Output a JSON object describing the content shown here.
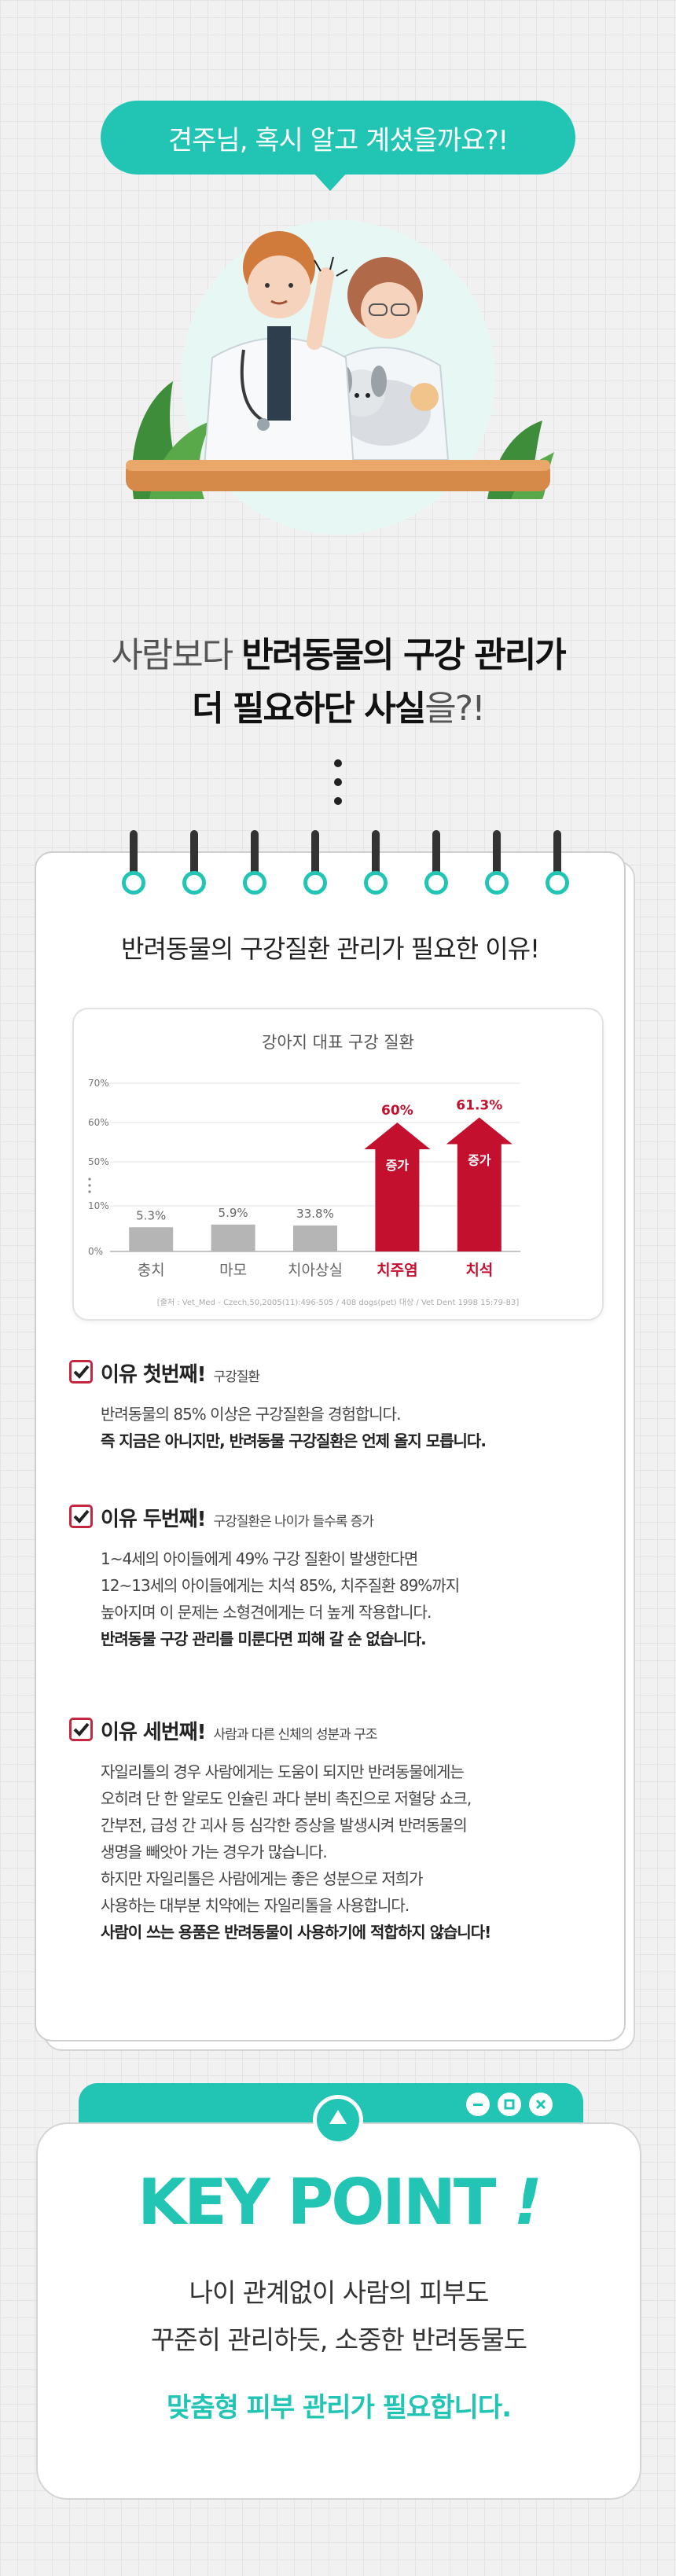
{
  "bubble": {
    "text": "견주님, 혹시 알고 계셨을까요?!"
  },
  "headline": {
    "line1_prefix": "사람보다 ",
    "line1_bold": "반려동물의 구강 관리가",
    "line2_bold": "더 필요하단 사실",
    "line2_suffix": "을?!"
  },
  "card": {
    "title": "반려동물의 구강질환 관리가 필요한 이유!"
  },
  "chart_data": {
    "type": "bar",
    "title": "강아지 대표 구강 질환",
    "categories": [
      "충치",
      "마모",
      "치아상실",
      "치주염",
      "치석"
    ],
    "values": [
      5.3,
      5.9,
      33.8,
      60,
      61.3
    ],
    "value_labels": [
      "5.3%",
      "5.9%",
      "33.8%",
      "60%",
      "61.3%"
    ],
    "highlight_label": "증가",
    "yticks": [
      "0%",
      "10%",
      "50%",
      "60%",
      "70%"
    ],
    "ylim": [
      0,
      70
    ],
    "axis_break": true,
    "colors": {
      "normal": "#b5b5b5",
      "highlight": "#c2102e",
      "label_highlight": "#c2102e"
    },
    "source": "[출처 : Vet_Med - Czech,50,2005(11):496-505 / 408 dogs(pet) 대상 / Vet Dent 1998 15:79-83]"
  },
  "reasons": [
    {
      "head": "이유 첫번째!",
      "sub": "구강질환",
      "lines": [
        "반려동물의 85% 이상은 구강질환을 경험합니다."
      ],
      "bold": "즉 지금은 아니지만, 반려동물 구강질환은 언제 올지 모릅니다."
    },
    {
      "head": "이유 두번째!",
      "sub": "구강질환은 나이가 들수록 증가",
      "lines": [
        "1~4세의 아이들에게 49% 구강 질환이 발생한다면",
        "12~13세의 아이들에게는 치석 85%, 치주질환 89%까지",
        "높아지며 이 문제는 소형견에게는 더 높게 작용합니다."
      ],
      "bold": "반려동물 구강 관리를 미룬다면 피해 갈 순 없습니다."
    },
    {
      "head": "이유 세번째!",
      "sub": "사람과 다른 신체의 성분과 구조",
      "lines": [
        "자일리톨의 경우 사람에게는 도움이 되지만 반려동물에게는",
        "오히려 단 한 알로도 인슐린 과다 분비 촉진으로 저혈당 쇼크,",
        "간부전, 급성 간 괴사 등 심각한 증상을 발생시켜 반려동물의",
        "생명을 빼앗아 가는 경우가 많습니다.",
        "하지만 자일리톨은 사람에게는 좋은 성분으로 저희가",
        "사용하는 대부분 치약에는 자일리톨을 사용합니다."
      ],
      "bold": "사람이 쓰는 용품은 반려동물이 사용하기에 적합하지 않습니다!"
    }
  ],
  "keypoint": {
    "title": "KEY POINT",
    "title_mark": "!",
    "line1": "나이 관계없이 사람의 피부도",
    "line2": "꾸준히 관리하듯, 소중한 반려동물도",
    "emphasis": "맞춤형 피부 관리가 필요합니다."
  },
  "colors": {
    "accent": "#22c4b4",
    "check": "#c42840"
  }
}
